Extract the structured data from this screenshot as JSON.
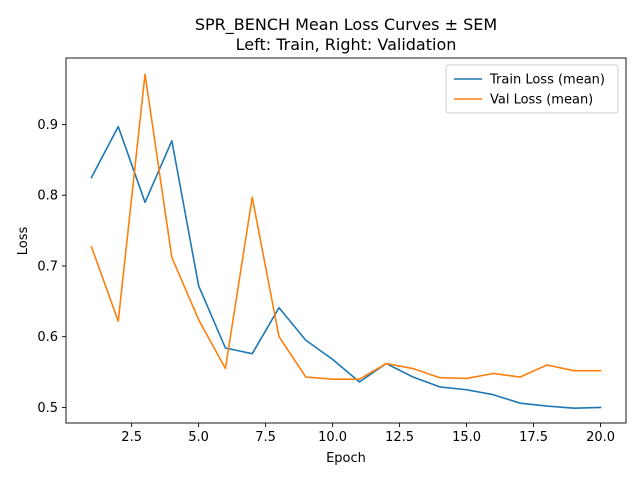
{
  "chart_data": {
    "type": "line",
    "title_lines": [
      "SPR_BENCH Mean Loss Curves ± SEM",
      "Left: Train, Right: Validation"
    ],
    "xlabel": "Epoch",
    "ylabel": "Loss",
    "xlim": [
      0.05,
      20.95
    ],
    "ylim": [
      0.478,
      0.994
    ],
    "xticks": [
      2.5,
      5.0,
      7.5,
      10.0,
      12.5,
      15.0,
      17.5,
      20.0
    ],
    "xtick_labels": [
      "2.5",
      "5.0",
      "7.5",
      "10.0",
      "12.5",
      "15.0",
      "17.5",
      "20.0"
    ],
    "yticks": [
      0.5,
      0.6,
      0.7,
      0.8,
      0.9
    ],
    "ytick_labels": [
      "0.5",
      "0.6",
      "0.7",
      "0.8",
      "0.9"
    ],
    "grid": false,
    "legend_position": "top-right",
    "x": [
      1,
      2,
      3,
      4,
      5,
      6,
      7,
      8,
      9,
      10,
      11,
      12,
      13,
      14,
      15,
      16,
      17,
      18,
      19,
      20
    ],
    "series": [
      {
        "name": "Train Loss (mean)",
        "color": "#1f77b4",
        "values": [
          0.825,
          0.897,
          0.79,
          0.877,
          0.672,
          0.584,
          0.576,
          0.641,
          0.595,
          0.568,
          0.536,
          0.562,
          0.543,
          0.529,
          0.525,
          0.518,
          0.506,
          0.502,
          0.499,
          0.5
        ]
      },
      {
        "name": "Val Loss (mean)",
        "color": "#ff7f0e",
        "values": [
          0.727,
          0.622,
          0.971,
          0.712,
          0.624,
          0.555,
          0.797,
          0.6,
          0.543,
          0.54,
          0.54,
          0.562,
          0.555,
          0.542,
          0.541,
          0.548,
          0.543,
          0.56,
          0.552,
          0.552
        ]
      }
    ]
  }
}
